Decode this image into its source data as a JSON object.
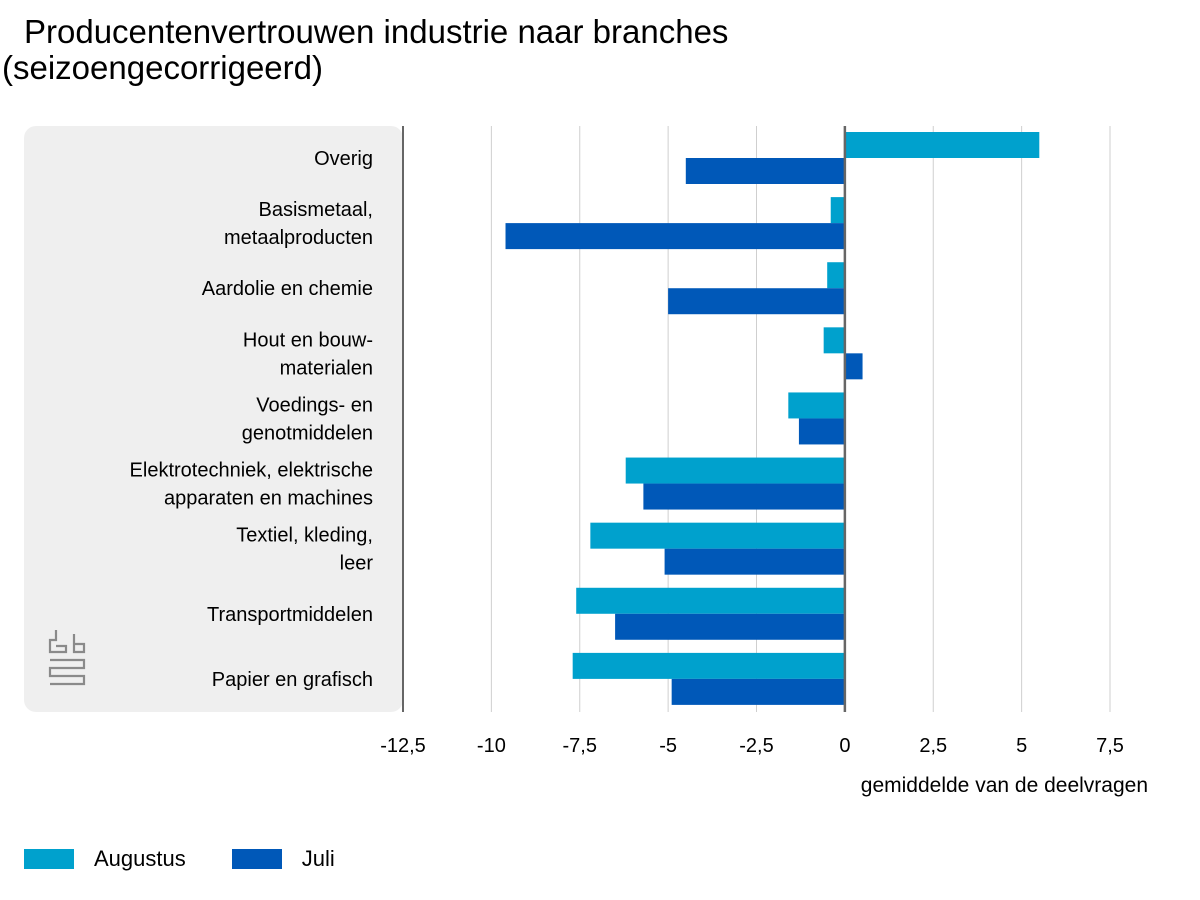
{
  "title": {
    "line1": "Producentenvertrouwen industrie naar branches",
    "line2": "(seizoengecorrigeerd)"
  },
  "logo": {
    "icon": "cbs-logo-icon"
  },
  "colors": {
    "augustus": "#00A1CD",
    "juli": "#0058B8",
    "panel": "#EFEFEF",
    "grid": "#CFCFCF",
    "axis": "#666666"
  },
  "legend": [
    {
      "key": "augustus",
      "label": "Augustus"
    },
    {
      "key": "juli",
      "label": "Juli"
    }
  ],
  "chart_data": {
    "type": "bar",
    "orientation": "horizontal",
    "categories": [
      [
        "Overig"
      ],
      [
        "Basismetaal,",
        "metaalproducten"
      ],
      [
        "Aardolie en chemie"
      ],
      [
        "Hout en bouw-",
        "materialen"
      ],
      [
        "Voedings- en",
        "genotmiddelen"
      ],
      [
        "Elektrotechniek, elektrische",
        "apparaten en machines"
      ],
      [
        "Textiel, kleding,",
        "leer"
      ],
      [
        "Transportmiddelen"
      ],
      [
        "Papier en grafisch"
      ]
    ],
    "series": [
      {
        "name": "Augustus",
        "values": [
          5.5,
          -0.4,
          -0.5,
          -0.6,
          -1.6,
          -6.2,
          -7.2,
          -7.6,
          -7.7
        ]
      },
      {
        "name": "Juli",
        "values": [
          -4.5,
          -9.6,
          -5.0,
          0.5,
          -1.3,
          -5.7,
          -5.1,
          -6.5,
          -4.9
        ]
      }
    ],
    "xlabel": "gemiddelde van de deelvragen",
    "xlim": [
      -12.5,
      7.5
    ],
    "xticks": [
      -12.5,
      -10,
      -7.5,
      -5,
      -2.5,
      0,
      2.5,
      5,
      7.5
    ],
    "xtick_labels": [
      "-12,5",
      "-10",
      "-7,5",
      "-5",
      "-2,5",
      "0",
      "2,5",
      "5",
      "7,5"
    ],
    "grid": true,
    "legend_position": "bottom-left"
  }
}
